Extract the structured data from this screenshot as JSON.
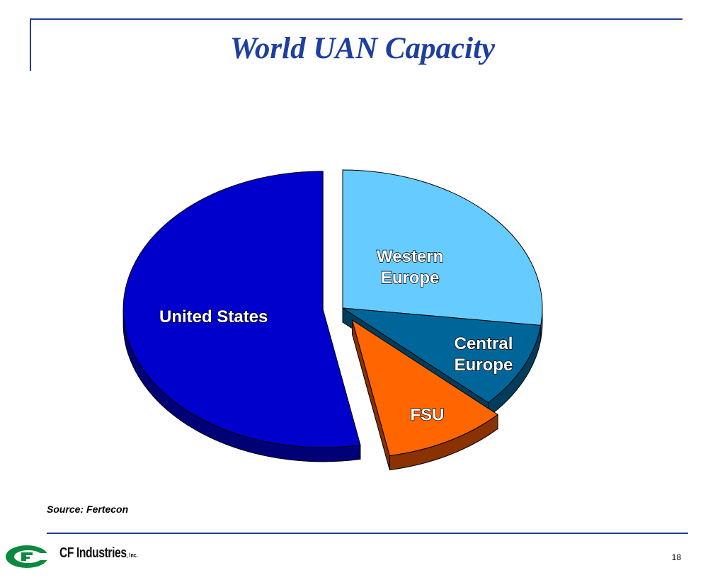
{
  "title": "World UAN Capacity",
  "source": "Source: Fertecon",
  "footer": {
    "company": "CF Industries",
    "company_suffix": ", Inc.",
    "page_number": "18",
    "logo_icon": "cf-logo-icon",
    "brand_color": "#0b8a3e"
  },
  "chart_data": {
    "type": "pie",
    "style": "3d-exploded",
    "title": "World UAN Capacity",
    "slices": [
      {
        "label": "Western Europe",
        "label_lines": [
          "Western",
          "Europe"
        ],
        "value": 27,
        "color": "#66ccff",
        "side_color": "#3a8fbf",
        "exploded": false
      },
      {
        "label": "Central Europe",
        "label_lines": [
          "Central",
          "Europe"
        ],
        "value": 10,
        "color": "#006699",
        "side_color": "#003d5c",
        "exploded": false
      },
      {
        "label": "FSU",
        "label_lines": [
          "FSU"
        ],
        "value": 10,
        "color": "#ff6600",
        "side_color": "#8a3200",
        "exploded": true
      },
      {
        "label": "United States",
        "label_lines": [
          "United States"
        ],
        "value": 53,
        "color": "#0000cc",
        "side_color": "#000077",
        "exploded": true
      }
    ]
  }
}
